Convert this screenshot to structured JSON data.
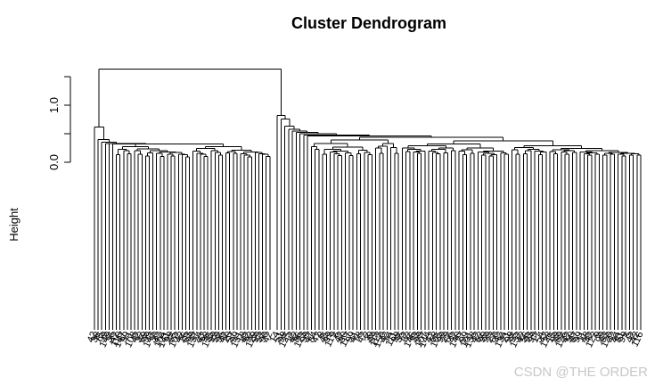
{
  "chart_data": {
    "type": "dendrogram",
    "title": "Cluster Dendrogram",
    "xlabel": "",
    "ylabel": "Height",
    "ylim": [
      0,
      1.8
    ],
    "yticks": [
      0.0,
      0.5,
      1.0,
      1.5
    ],
    "ytick_labels": [
      "0.0",
      "",
      "1.0",
      ""
    ],
    "leaf_label_samples": [
      "42",
      "107",
      "58",
      "99",
      "61",
      "12"
    ],
    "merge_heights": {
      "root": 1.63,
      "left_cluster": 0.62,
      "right_cluster": 0.82,
      "left_subclusters": [
        0.4,
        0.35,
        0.33,
        0.33,
        0.32
      ],
      "left_core": 0.32,
      "left_core_inner": 0.23,
      "right_group_a": [
        0.76,
        0.63,
        0.58,
        0.55
      ],
      "right_group_b": [
        0.52,
        0.5,
        0.48,
        0.46
      ],
      "right_core": 0.44,
      "right_core_inner": 0.38
    },
    "leaf_count_estimate": 150,
    "grid": false,
    "legend": "none"
  },
  "watermark": "CSDN @THE ORDER",
  "colors": {
    "line": "#000000",
    "background": "#ffffff",
    "watermark": "#c8c8c8"
  }
}
